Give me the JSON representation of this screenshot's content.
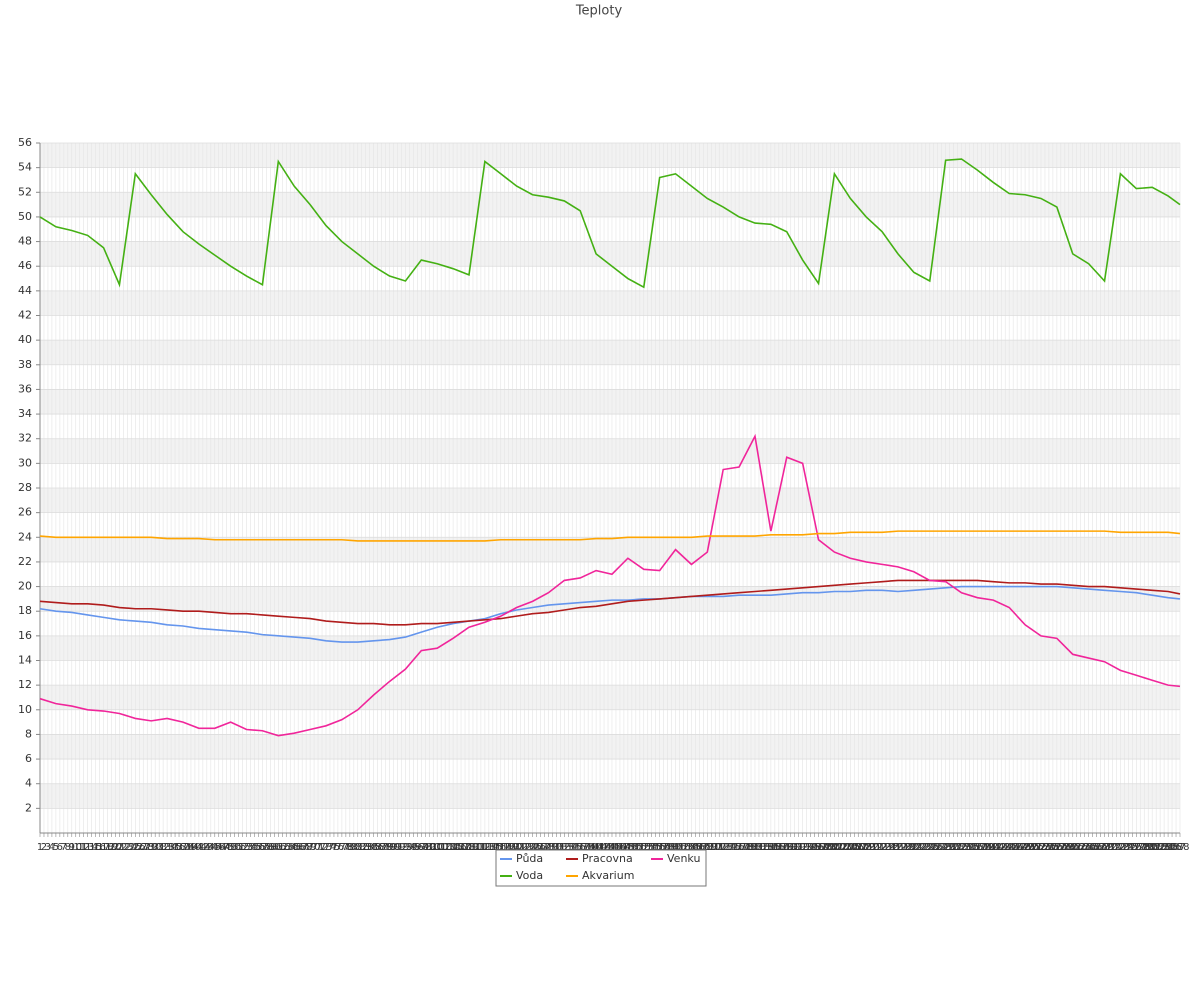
{
  "chart_data": {
    "type": "line",
    "title": "Teploty",
    "x": [
      1,
      5,
      9,
      13,
      17,
      21,
      25,
      29,
      33,
      37,
      41,
      45,
      49,
      53,
      57,
      61,
      65,
      69,
      73,
      77,
      81,
      85,
      89,
      93,
      97,
      101,
      105,
      109,
      113,
      117,
      121,
      125,
      129,
      133,
      137,
      141,
      145,
      149,
      153,
      157,
      161,
      165,
      169,
      173,
      177,
      181,
      185,
      189,
      193,
      197,
      201,
      205,
      209,
      213,
      217,
      221,
      225,
      229,
      233,
      237,
      241,
      245,
      249,
      253,
      257,
      261,
      265,
      269,
      273,
      277,
      281,
      285,
      288
    ],
    "xlim": [
      1,
      288
    ],
    "xticks": [
      1,
      2,
      3,
      4,
      5,
      6,
      7,
      8,
      9,
      10,
      11,
      12,
      13,
      14,
      15,
      16,
      17,
      18,
      19,
      20,
      21,
      22,
      23,
      24,
      25,
      26,
      27,
      28,
      29,
      30,
      31,
      32,
      33,
      34,
      35,
      36,
      37,
      38,
      39,
      40,
      41,
      42,
      43,
      44,
      45,
      46,
      47,
      48,
      49,
      50,
      51,
      52,
      53,
      54,
      55,
      56,
      57,
      58,
      59,
      60,
      61,
      62,
      63,
      64,
      65,
      66,
      67,
      68,
      69,
      70,
      71,
      72,
      73,
      74,
      75,
      76,
      77,
      78,
      79,
      80,
      81,
      82,
      83,
      84,
      85,
      86,
      87,
      88,
      89,
      90,
      91,
      92,
      93,
      94,
      95,
      96,
      97,
      98,
      99,
      100,
      101,
      102,
      103,
      104,
      105,
      106,
      107,
      108,
      109,
      110,
      111,
      112,
      113,
      114,
      115,
      116,
      117,
      118,
      119,
      120,
      121,
      122,
      123,
      124,
      125,
      126,
      127,
      128,
      129,
      130,
      131,
      132,
      133,
      134,
      135,
      136,
      137,
      138,
      139,
      140,
      141,
      142,
      143,
      144,
      145,
      146,
      147,
      148,
      149,
      150,
      151,
      152,
      153,
      154,
      155,
      156,
      157,
      158,
      159,
      160,
      161,
      162,
      163,
      164,
      165,
      166,
      167,
      168,
      169,
      170,
      171,
      172,
      173,
      174,
      175,
      176,
      177,
      178,
      179,
      180,
      181,
      182,
      183,
      184,
      185,
      186,
      187,
      188,
      189,
      190,
      191,
      192,
      193,
      194,
      195,
      196,
      197,
      198,
      199,
      200,
      201,
      202,
      203,
      204,
      205,
      206,
      207,
      208,
      209,
      210,
      211,
      212,
      213,
      214,
      215,
      216,
      217,
      218,
      219,
      220,
      221,
      222,
      223,
      224,
      225,
      226,
      227,
      228,
      229,
      230,
      231,
      232,
      233,
      234,
      235,
      236,
      237,
      238,
      239,
      240,
      241,
      242,
      243,
      244,
      245,
      246,
      247,
      248,
      249,
      250,
      251,
      252,
      253,
      254,
      255,
      256,
      257,
      258,
      259,
      260,
      261,
      262,
      263,
      264,
      265,
      266,
      267,
      268,
      269,
      270,
      271,
      272,
      273,
      274,
      275,
      276,
      277,
      278,
      279,
      280,
      281,
      282,
      283,
      284,
      285,
      286,
      287,
      288
    ],
    "ylim": [
      0,
      56
    ],
    "yticks": [
      2,
      4,
      6,
      8,
      10,
      12,
      14,
      16,
      18,
      20,
      22,
      24,
      26,
      28,
      30,
      32,
      34,
      36,
      38,
      40,
      42,
      44,
      46,
      48,
      50,
      52,
      54,
      56
    ],
    "grid": true,
    "legend": "bottom",
    "series": [
      {
        "name": "Půda",
        "color": "#6495ed",
        "values": [
          18.2,
          18.0,
          17.9,
          17.7,
          17.5,
          17.3,
          17.2,
          17.1,
          16.9,
          16.8,
          16.6,
          16.5,
          16.4,
          16.3,
          16.1,
          16.0,
          15.9,
          15.8,
          15.6,
          15.5,
          15.5,
          15.6,
          15.7,
          15.9,
          16.3,
          16.7,
          17.0,
          17.2,
          17.4,
          17.8,
          18.1,
          18.3,
          18.5,
          18.6,
          18.7,
          18.8,
          18.9,
          18.9,
          19.0,
          19.0,
          19.1,
          19.2,
          19.2,
          19.2,
          19.3,
          19.3,
          19.3,
          19.4,
          19.5,
          19.5,
          19.6,
          19.6,
          19.7,
          19.7,
          19.6,
          19.7,
          19.8,
          19.9,
          20.0,
          20.0,
          20.0,
          20.0,
          20.0,
          20.0,
          20.0,
          19.9,
          19.8,
          19.7,
          19.6,
          19.5,
          19.3,
          19.1,
          19.0
        ]
      },
      {
        "name": "Pracovna",
        "color": "#b01c1c",
        "values": [
          18.8,
          18.7,
          18.6,
          18.6,
          18.5,
          18.3,
          18.2,
          18.2,
          18.1,
          18.0,
          18.0,
          17.9,
          17.8,
          17.8,
          17.7,
          17.6,
          17.5,
          17.4,
          17.2,
          17.1,
          17.0,
          17.0,
          16.9,
          16.9,
          17.0,
          17.0,
          17.1,
          17.2,
          17.3,
          17.4,
          17.6,
          17.8,
          17.9,
          18.1,
          18.3,
          18.4,
          18.6,
          18.8,
          18.9,
          19.0,
          19.1,
          19.2,
          19.3,
          19.4,
          19.5,
          19.6,
          19.7,
          19.8,
          19.9,
          20.0,
          20.1,
          20.2,
          20.3,
          20.4,
          20.5,
          20.5,
          20.5,
          20.5,
          20.5,
          20.5,
          20.4,
          20.3,
          20.3,
          20.2,
          20.2,
          20.1,
          20.0,
          20.0,
          19.9,
          19.8,
          19.7,
          19.6,
          19.4
        ]
      },
      {
        "name": "Venku",
        "color": "#f0259a",
        "values": [
          10.9,
          10.5,
          10.3,
          10.0,
          9.9,
          9.7,
          9.3,
          9.1,
          9.3,
          9.0,
          8.5,
          8.5,
          9.0,
          8.4,
          8.3,
          7.9,
          8.1,
          8.4,
          8.7,
          9.2,
          10.0,
          11.2,
          12.3,
          13.3,
          14.8,
          15.0,
          15.8,
          16.7,
          17.1,
          17.6,
          18.3,
          18.8,
          19.5,
          20.5,
          20.7,
          21.3,
          21.0,
          22.3,
          21.4,
          21.3,
          23.0,
          21.8,
          22.8,
          29.5,
          29.7,
          32.2,
          24.5,
          30.5,
          30.0,
          23.8,
          22.8,
          22.3,
          22.0,
          21.8,
          21.6,
          21.2,
          20.5,
          20.4,
          19.5,
          19.1,
          18.9,
          18.3,
          16.9,
          16.0,
          15.8,
          14.5,
          14.2,
          13.9,
          13.2,
          12.8,
          12.4,
          12.0,
          11.9
        ]
      },
      {
        "name": "Voda",
        "color": "#44b013",
        "values": [
          50,
          49.2,
          48.9,
          48.5,
          47.5,
          44.5,
          53.5,
          51.8,
          50.2,
          48.8,
          47.8,
          46.9,
          46,
          45.2,
          44.5,
          54.5,
          52.5,
          51,
          49.3,
          48,
          47,
          46,
          45.2,
          44.8,
          46.5,
          46.2,
          45.8,
          45.3,
          54.5,
          53.5,
          52.5,
          51.8,
          51.6,
          51.3,
          50.5,
          47,
          46,
          45,
          44.3,
          53.2,
          53.5,
          52.5,
          51.5,
          50.8,
          50,
          49.5,
          49.4,
          48.8,
          46.5,
          44.6,
          53.5,
          51.5,
          50,
          48.8,
          47,
          45.5,
          44.8,
          54.6,
          54.7,
          53.8,
          52.8,
          51.9,
          51.8,
          51.5,
          50.8,
          47,
          46.2,
          44.8,
          53.5,
          52.3,
          52.4,
          51.7,
          51.0
        ]
      },
      {
        "name": "Akvarium",
        "color": "#ffa500",
        "values": [
          24.1,
          24.0,
          24.0,
          24.0,
          24.0,
          24.0,
          24.0,
          24.0,
          23.9,
          23.9,
          23.9,
          23.8,
          23.8,
          23.8,
          23.8,
          23.8,
          23.8,
          23.8,
          23.8,
          23.8,
          23.7,
          23.7,
          23.7,
          23.7,
          23.7,
          23.7,
          23.7,
          23.7,
          23.7,
          23.8,
          23.8,
          23.8,
          23.8,
          23.8,
          23.8,
          23.9,
          23.9,
          24.0,
          24.0,
          24.0,
          24.0,
          24.0,
          24.1,
          24.1,
          24.1,
          24.1,
          24.2,
          24.2,
          24.2,
          24.3,
          24.3,
          24.4,
          24.4,
          24.4,
          24.5,
          24.5,
          24.5,
          24.5,
          24.5,
          24.5,
          24.5,
          24.5,
          24.5,
          24.5,
          24.5,
          24.5,
          24.5,
          24.5,
          24.4,
          24.4,
          24.4,
          24.4,
          24.3
        ]
      }
    ]
  }
}
